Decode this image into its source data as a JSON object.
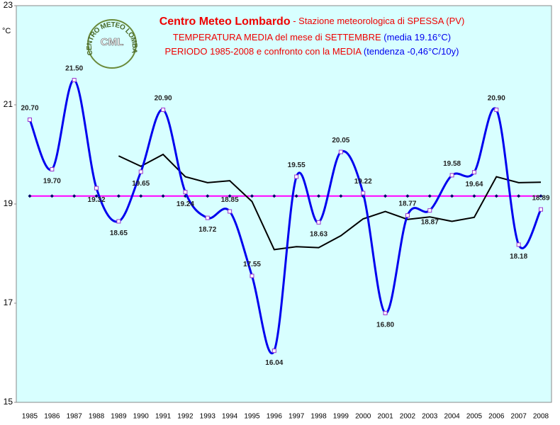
{
  "chart_data": {
    "type": "line",
    "title": "Centro Meteo Lombardo",
    "title_suffix": " - Stazione meteorologica di SPESSA (PV)",
    "subtitle_1": "TEMPERATURA MEDIA del mese di SETTEMBRE",
    "subtitle_1_note": " (media 19.16°C)",
    "subtitle_2": "PERIODO 1985-2008 e confronto con la MEDIA",
    "subtitle_2_note": " (tendenza -0,46°C/10y)",
    "logo_text": "CENTRO METEO LOMBARDO",
    "logo_initials": "CML",
    "ylabel": "°C",
    "categories": [
      "1985",
      "1986",
      "1987",
      "1988",
      "1989",
      "1990",
      "1991",
      "1992",
      "1993",
      "1994",
      "1995",
      "1996",
      "1997",
      "1998",
      "1999",
      "2000",
      "2001",
      "2002",
      "2003",
      "2004",
      "2005",
      "2006",
      "2007",
      "2008"
    ],
    "ylim": [
      15,
      23
    ],
    "yticks": [
      15,
      17,
      19,
      21,
      23
    ],
    "series": [
      {
        "color": "#0000ee",
        "marker_color": "#9933cc",
        "smooth": true,
        "values": [
          20.7,
          19.7,
          21.5,
          19.32,
          18.65,
          19.65,
          20.9,
          19.24,
          18.72,
          18.85,
          17.55,
          16.04,
          19.55,
          18.63,
          20.05,
          19.22,
          16.8,
          18.77,
          18.87,
          19.58,
          19.64,
          20.9,
          18.18,
          18.89
        ],
        "value_labels": [
          "20.70",
          "19.70",
          "21.50",
          "19.32",
          "18.65",
          "19.65",
          "20.90",
          "19.24",
          "18.72",
          "18.85",
          "17.55",
          "16.04",
          "19.55",
          "18.63",
          "20.05",
          "19.22",
          "16.80",
          "18.77",
          "18.87",
          "19.58",
          "19.64",
          "20.90",
          "18.18",
          "18.89"
        ]
      },
      {
        "color": "#ff00ff",
        "marker_color": "#000066",
        "values": [
          19.16,
          19.16,
          19.16,
          19.16,
          19.16,
          19.16,
          19.16,
          19.16,
          19.16,
          19.16,
          19.16,
          19.16,
          19.16,
          19.16,
          19.16,
          19.16,
          19.16,
          19.16,
          19.16,
          19.16,
          19.16,
          19.16,
          19.16,
          19.16
        ]
      },
      {
        "color": "#000000",
        "values": [
          null,
          null,
          null,
          null,
          19.97,
          19.76,
          20.0,
          19.55,
          19.43,
          19.47,
          19.05,
          18.08,
          18.14,
          18.12,
          18.36,
          18.7,
          18.85,
          18.69,
          18.74,
          18.65,
          18.73,
          19.55,
          19.43,
          19.44
        ]
      }
    ],
    "background": "#d8ffff"
  }
}
